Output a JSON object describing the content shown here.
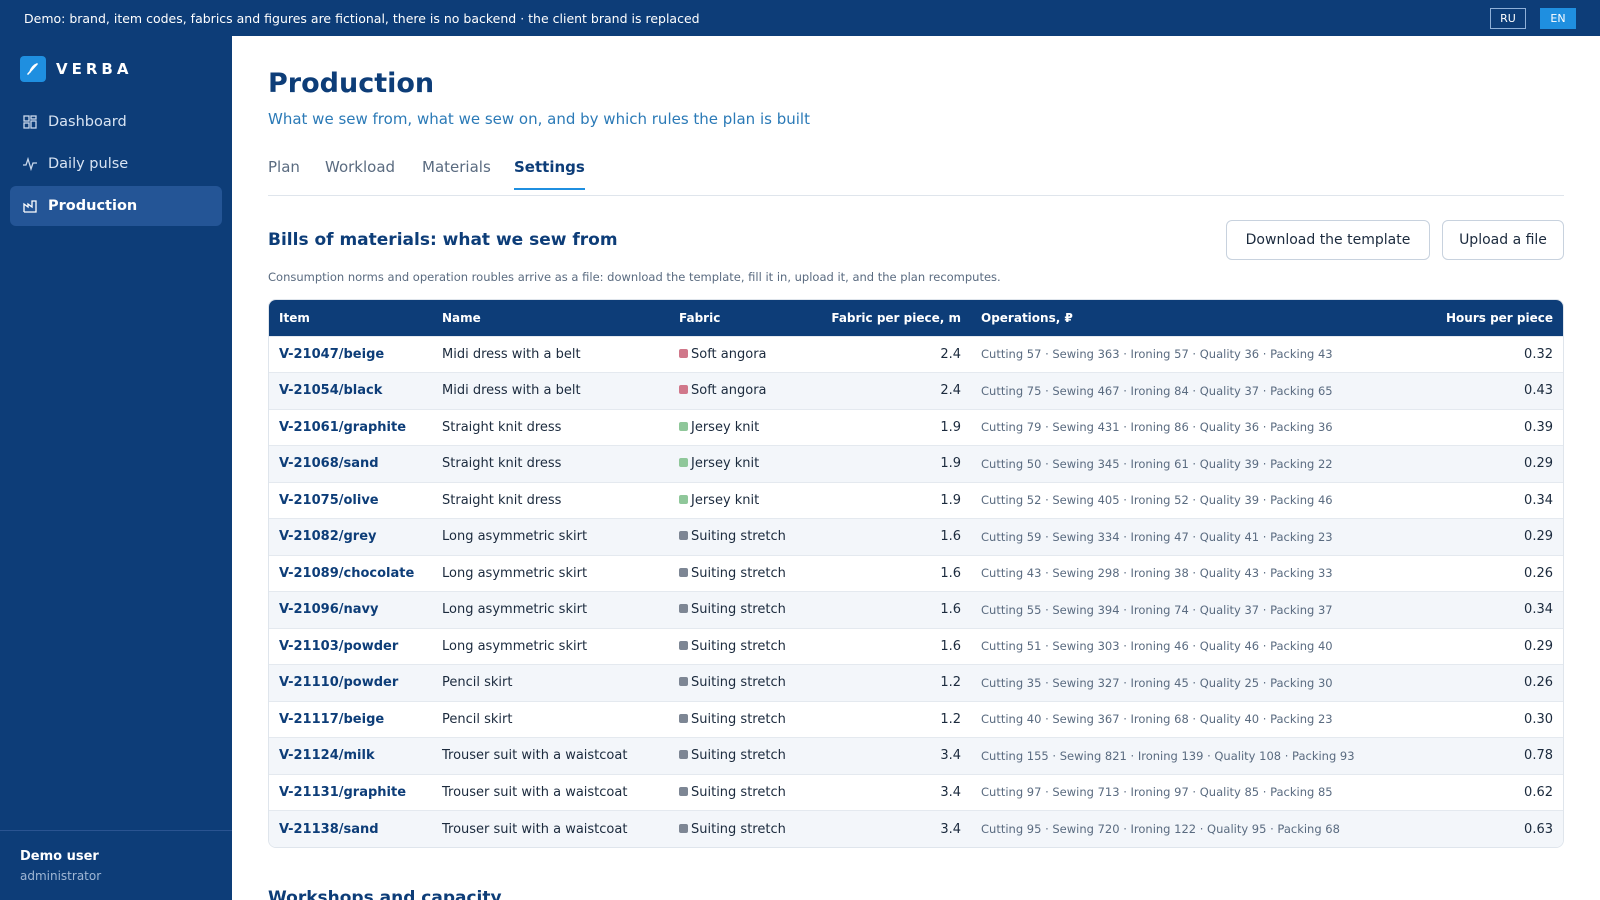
{
  "banner": {
    "text": "Demo: brand, item codes, fabrics and figures are fictional, there is no backend · the client brand is replaced",
    "lang_ru": "RU",
    "lang_en": "EN"
  },
  "sidebar": {
    "brand": "VERBA",
    "items": [
      {
        "label": "Dashboard",
        "icon": "grid-icon"
      },
      {
        "label": "Daily pulse",
        "icon": "pulse-icon"
      },
      {
        "label": "Production",
        "icon": "factory-icon",
        "active": true
      }
    ],
    "user_name": "Demo user",
    "user_role": "administrator"
  },
  "header": {
    "title": "Production",
    "subtitle": "What we sew from, what we sew on, and by which rules the plan is built"
  },
  "tabs": [
    {
      "label": "Plan"
    },
    {
      "label": "Workload"
    },
    {
      "label": "Materials"
    },
    {
      "label": "Settings",
      "active": true
    }
  ],
  "bom": {
    "title": "Bills of materials: what we sew from",
    "download_label": "Download the template",
    "upload_label": "Upload a file",
    "hint": "Consumption norms and operation roubles arrive as a file: download the template, fill it in, upload it, and the plan recomputes.",
    "columns": [
      "Item",
      "Name",
      "Fabric",
      "Fabric per piece, m",
      "Operations, ₽",
      "Hours per piece"
    ],
    "fabric_colors": {
      "Soft angora": "#d0778a",
      "Jersey knit": "#8fc79a",
      "Suiting stretch": "#7d8694"
    },
    "rows": [
      {
        "item": "V-21047/beige",
        "name": "Midi dress with a belt",
        "fabric": "Soft angora",
        "fabric_m": "2.4",
        "ops": "Cutting 57 · Sewing 363 · Ironing 57 · Quality 36 · Packing 43",
        "hours": "0.32"
      },
      {
        "item": "V-21054/black",
        "name": "Midi dress with a belt",
        "fabric": "Soft angora",
        "fabric_m": "2.4",
        "ops": "Cutting 75 · Sewing 467 · Ironing 84 · Quality 37 · Packing 65",
        "hours": "0.43"
      },
      {
        "item": "V-21061/graphite",
        "name": "Straight knit dress",
        "fabric": "Jersey knit",
        "fabric_m": "1.9",
        "ops": "Cutting 79 · Sewing 431 · Ironing 86 · Quality 36 · Packing 36",
        "hours": "0.39"
      },
      {
        "item": "V-21068/sand",
        "name": "Straight knit dress",
        "fabric": "Jersey knit",
        "fabric_m": "1.9",
        "ops": "Cutting 50 · Sewing 345 · Ironing 61 · Quality 39 · Packing 22",
        "hours": "0.29"
      },
      {
        "item": "V-21075/olive",
        "name": "Straight knit dress",
        "fabric": "Jersey knit",
        "fabric_m": "1.9",
        "ops": "Cutting 52 · Sewing 405 · Ironing 52 · Quality 39 · Packing 46",
        "hours": "0.34"
      },
      {
        "item": "V-21082/grey",
        "name": "Long asymmetric skirt",
        "fabric": "Suiting stretch",
        "fabric_m": "1.6",
        "ops": "Cutting 59 · Sewing 334 · Ironing 47 · Quality 41 · Packing 23",
        "hours": "0.29"
      },
      {
        "item": "V-21089/chocolate",
        "name": "Long asymmetric skirt",
        "fabric": "Suiting stretch",
        "fabric_m": "1.6",
        "ops": "Cutting 43 · Sewing 298 · Ironing 38 · Quality 43 · Packing 33",
        "hours": "0.26"
      },
      {
        "item": "V-21096/navy",
        "name": "Long asymmetric skirt",
        "fabric": "Suiting stretch",
        "fabric_m": "1.6",
        "ops": "Cutting 55 · Sewing 394 · Ironing 74 · Quality 37 · Packing 37",
        "hours": "0.34"
      },
      {
        "item": "V-21103/powder",
        "name": "Long asymmetric skirt",
        "fabric": "Suiting stretch",
        "fabric_m": "1.6",
        "ops": "Cutting 51 · Sewing 303 · Ironing 46 · Quality 46 · Packing 40",
        "hours": "0.29"
      },
      {
        "item": "V-21110/powder",
        "name": "Pencil skirt",
        "fabric": "Suiting stretch",
        "fabric_m": "1.2",
        "ops": "Cutting 35 · Sewing 327 · Ironing 45 · Quality 25 · Packing 30",
        "hours": "0.26"
      },
      {
        "item": "V-21117/beige",
        "name": "Pencil skirt",
        "fabric": "Suiting stretch",
        "fabric_m": "1.2",
        "ops": "Cutting 40 · Sewing 367 · Ironing 68 · Quality 40 · Packing 23",
        "hours": "0.30"
      },
      {
        "item": "V-21124/milk",
        "name": "Trouser suit with a waistcoat",
        "fabric": "Suiting stretch",
        "fabric_m": "3.4",
        "ops": "Cutting 155 · Sewing 821 · Ironing 139 · Quality 108 · Packing 93",
        "hours": "0.78"
      },
      {
        "item": "V-21131/graphite",
        "name": "Trouser suit with a waistcoat",
        "fabric": "Suiting stretch",
        "fabric_m": "3.4",
        "ops": "Cutting 97 · Sewing 713 · Ironing 97 · Quality 85 · Packing 85",
        "hours": "0.62"
      },
      {
        "item": "V-21138/sand",
        "name": "Trouser suit with a waistcoat",
        "fabric": "Suiting stretch",
        "fabric_m": "3.4",
        "ops": "Cutting 95 · Sewing 720 · Ironing 122 · Quality 95 · Packing 68",
        "hours": "0.63"
      }
    ]
  },
  "next_section": {
    "title": "Workshops and capacity"
  }
}
